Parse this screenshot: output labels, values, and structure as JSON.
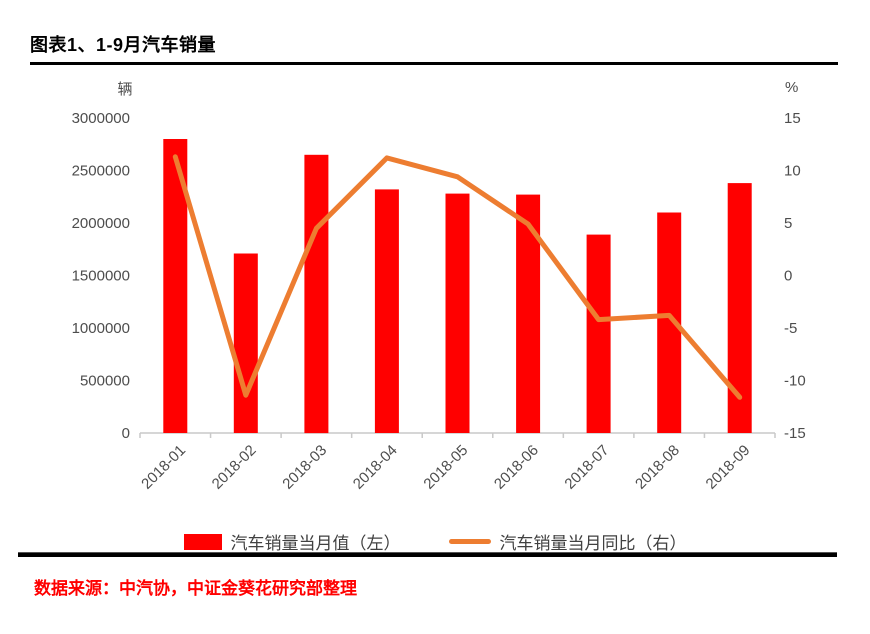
{
  "title": "图表1、1-9月汽车销量",
  "source_note": "数据来源：中汽协，中证金葵花研究部整理",
  "colors": {
    "bar": "#FF0000",
    "line": "#ED7D31",
    "axis_text": "#4d4d4d",
    "axis_line": "#c9c9c9",
    "title_text": "#000000",
    "source_text": "#FF0000",
    "legend_text": "#404040"
  },
  "legend": [
    {
      "type": "bar",
      "label": "汽车销量当月值（左）",
      "color": "#FF0000"
    },
    {
      "type": "line",
      "label": "汽车销量当月同比（右）",
      "color": "#ED7D31"
    }
  ],
  "chart_data": {
    "type": "bar+line combo",
    "categories": [
      "2018-01",
      "2018-02",
      "2018-03",
      "2018-04",
      "2018-05",
      "2018-06",
      "2018-07",
      "2018-08",
      "2018-09"
    ],
    "series": [
      {
        "name": "汽车销量当月值（左）",
        "type": "bar",
        "axis": "left",
        "values": [
          2800000,
          1710000,
          2650000,
          2320000,
          2280000,
          2270000,
          1890000,
          2100000,
          2380000
        ]
      },
      {
        "name": "汽车销量当月同比（右）",
        "type": "line",
        "axis": "right",
        "values": [
          11.3,
          -11.4,
          4.5,
          11.2,
          9.4,
          4.9,
          -4.2,
          -3.8,
          -11.6
        ]
      }
    ],
    "left_axis": {
      "unit": "辆",
      "min": 0,
      "max": 3000000,
      "ticks": [
        0,
        500000,
        1000000,
        1500000,
        2000000,
        2500000,
        3000000
      ]
    },
    "right_axis": {
      "unit": "%",
      "min": -15,
      "max": 15,
      "ticks": [
        -15,
        -10,
        -5,
        0,
        5,
        10,
        15
      ]
    },
    "grid": "off",
    "legend_position": "bottom"
  }
}
